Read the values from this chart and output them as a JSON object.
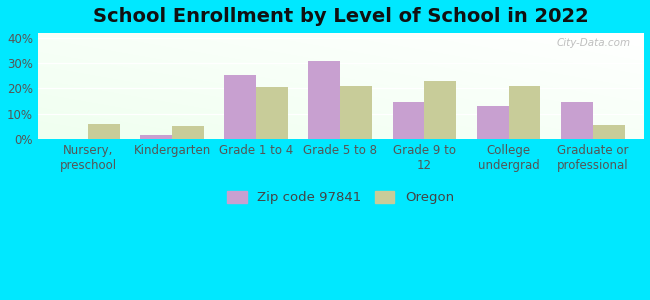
{
  "title": "School Enrollment by Level of School in 2022",
  "categories": [
    "Nursery,\npreschool",
    "Kindergarten",
    "Grade 1 to 4",
    "Grade 5 to 8",
    "Grade 9 to\n12",
    "College\nundergrad",
    "Graduate or\nprofessional"
  ],
  "zip_values": [
    0.0,
    1.5,
    25.5,
    31.0,
    14.5,
    13.0,
    14.5
  ],
  "oregon_values": [
    6.0,
    5.0,
    20.5,
    21.0,
    23.0,
    21.0,
    5.5
  ],
  "zip_color": "#c8a0d0",
  "oregon_color": "#c8cc99",
  "background_outer": "#00e8ff",
  "ylim": [
    0,
    42
  ],
  "yticks": [
    0,
    10,
    20,
    30,
    40
  ],
  "ytick_labels": [
    "0%",
    "10%",
    "20%",
    "30%",
    "40%"
  ],
  "legend_zip_label": "Zip code 97841",
  "legend_oregon_label": "Oregon",
  "watermark": "City-Data.com",
  "bar_width": 0.38,
  "title_fontsize": 14,
  "tick_fontsize": 8.5,
  "legend_fontsize": 9.5
}
